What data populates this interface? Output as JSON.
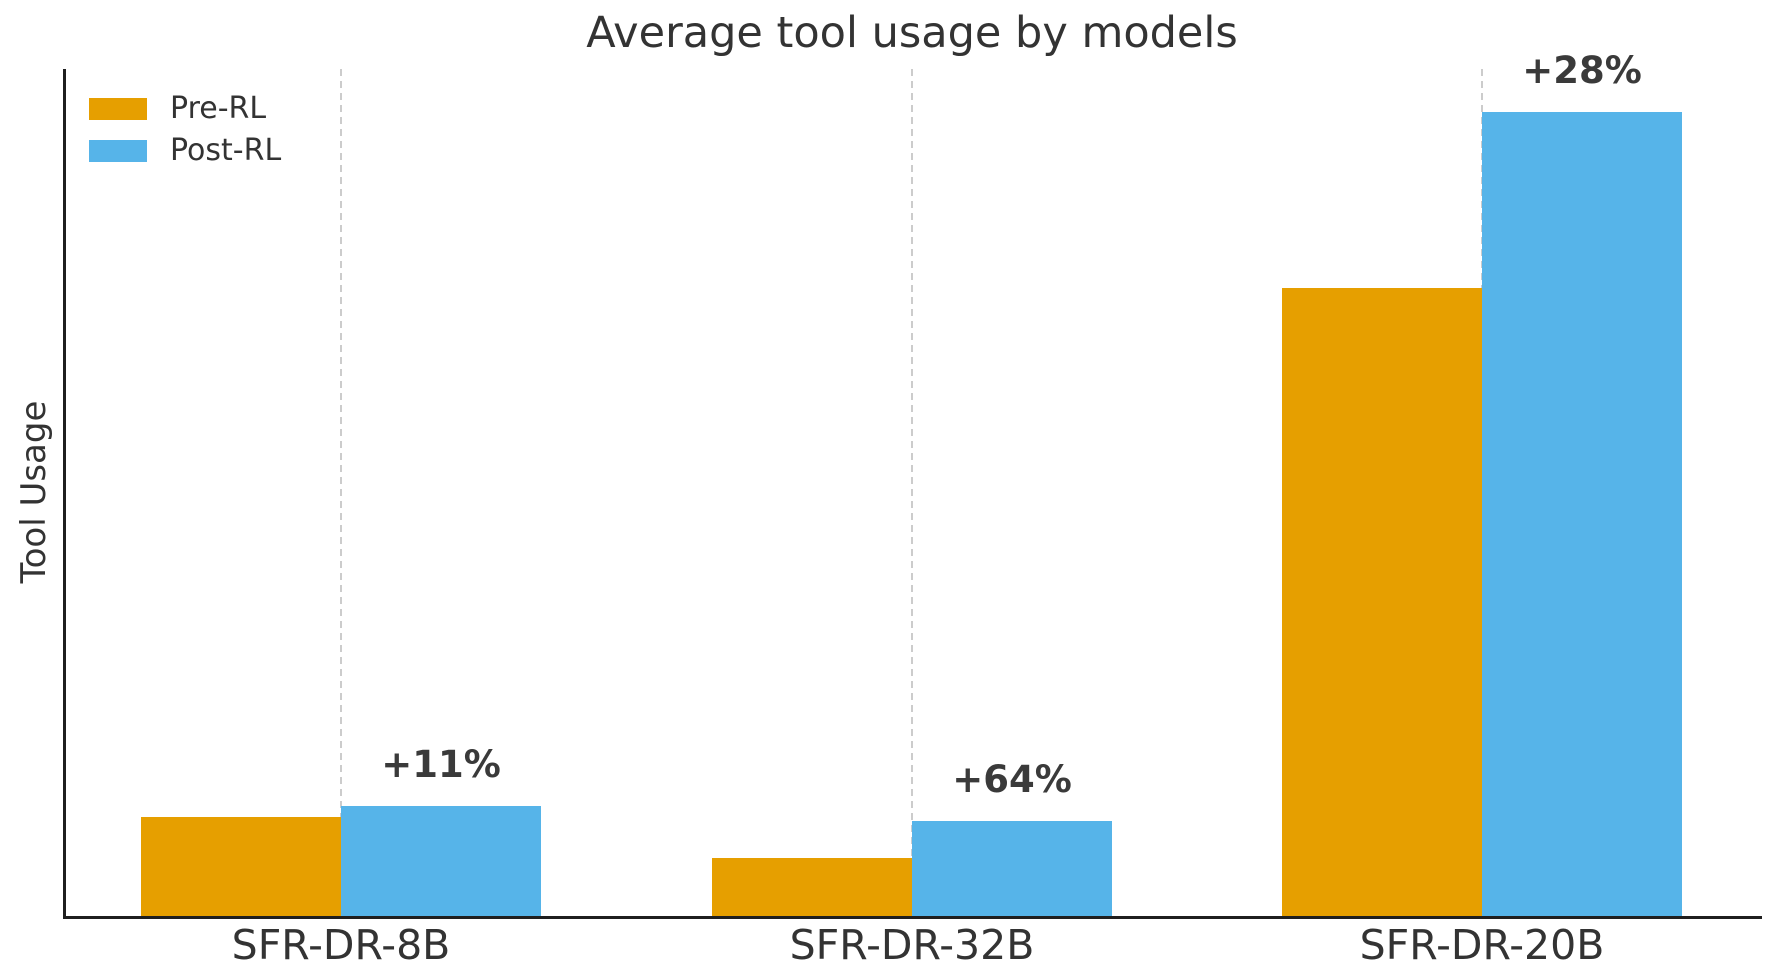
{
  "chart_data": {
    "type": "bar",
    "title": "Average tool usage by models",
    "ylabel": "Tool Usage",
    "xlabel": "",
    "categories": [
      "SFR-DR-8B",
      "SFR-DR-32B",
      "SFR-DR-20B"
    ],
    "series": [
      {
        "name": "Pre-RL",
        "color": "#E69F00",
        "values": [
          12.3,
          7.2,
          78.1
        ]
      },
      {
        "name": "Post-RL",
        "color": "#56B4E9",
        "values": [
          13.7,
          11.8,
          100.0
        ]
      }
    ],
    "annotations": [
      "+11%",
      "+64%",
      "+28%"
    ],
    "ylim": [
      0,
      105.3
    ],
    "yticks": [],
    "units": "relative (tallest bar = 100)",
    "grid": "vertical dashed lines at group centers",
    "legend_position": "upper-left"
  },
  "colors": {
    "pre_rl": "#E69F00",
    "post_rl": "#56B4E9",
    "text": "#333333",
    "annotation": "#3a3a3a",
    "spine": "#1f1f1f",
    "gridline": "#cccccc"
  }
}
